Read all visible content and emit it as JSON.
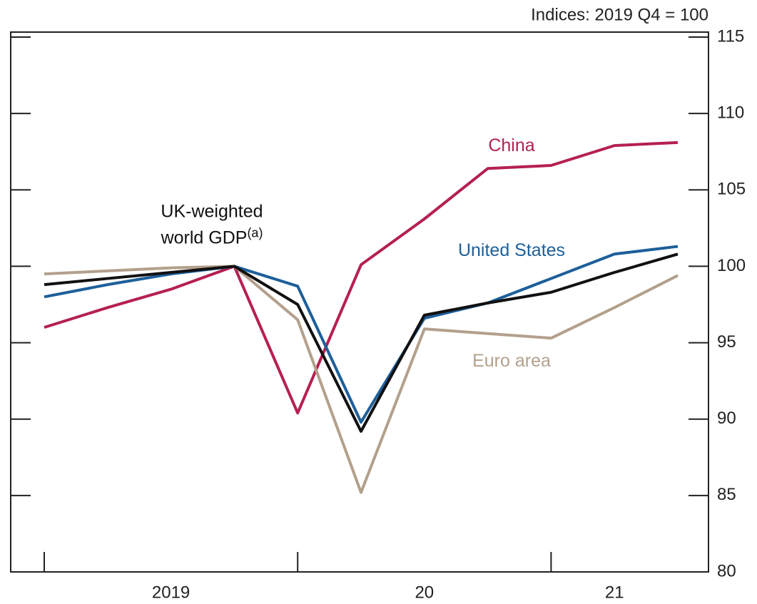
{
  "chart_data": {
    "type": "line",
    "unit_label": "Indices: 2019 Q4 = 100",
    "categories": [
      null,
      null,
      "2019",
      null,
      null,
      null,
      "20",
      null,
      null,
      "21",
      null
    ],
    "ylim": [
      80,
      115
    ],
    "yticks": [
      80,
      85,
      90,
      95,
      100,
      105,
      110,
      115
    ],
    "series": [
      {
        "name": "China",
        "color": "#b5204f",
        "values": [
          96.0,
          97.3,
          98.5,
          100,
          90.4,
          100.1,
          103.1,
          106.4,
          106.6,
          107.9,
          108.1
        ]
      },
      {
        "name": "United States",
        "color": "#1d5f9a",
        "values": [
          98.0,
          98.8,
          99.5,
          100,
          98.7,
          89.8,
          96.6,
          97.6,
          99.2,
          100.8,
          101.3
        ]
      },
      {
        "name": "Euro area",
        "color": "#b3a08c",
        "values": [
          99.5,
          99.7,
          99.9,
          100,
          96.5,
          85.2,
          95.9,
          95.6,
          95.3,
          97.3,
          99.4
        ]
      },
      {
        "name": "UK-weighted world GDP",
        "note_marker": "(a)",
        "color": "#111111",
        "values": [
          98.8,
          99.2,
          99.6,
          100,
          97.5,
          89.2,
          96.8,
          97.6,
          98.3,
          99.6,
          100.8
        ]
      }
    ]
  }
}
